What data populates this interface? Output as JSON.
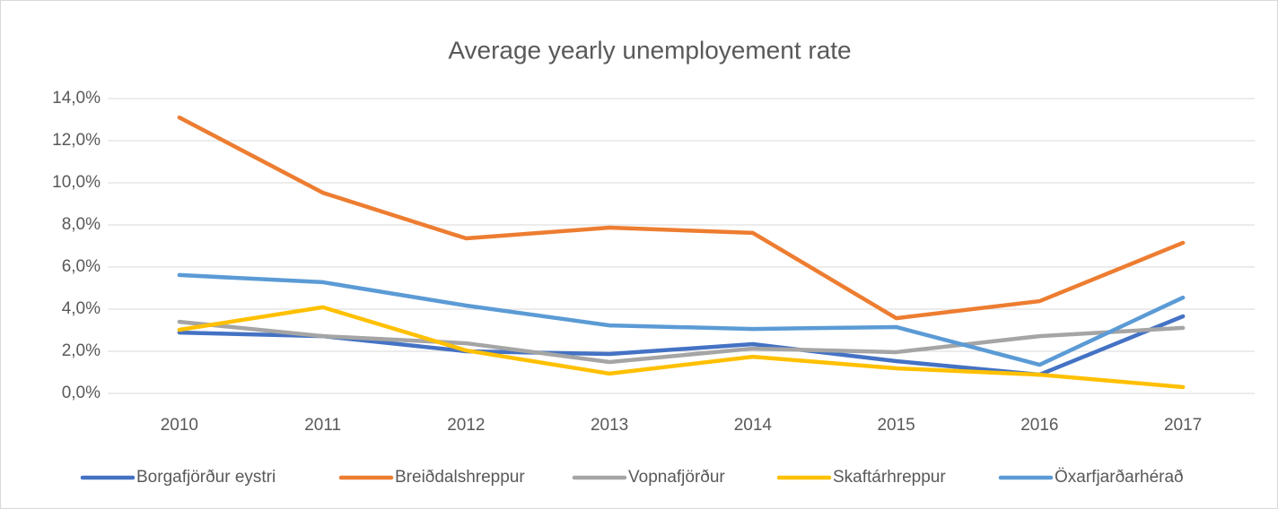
{
  "chart_data": {
    "type": "line",
    "title": "Average yearly unemployement rate",
    "categories": [
      "2010",
      "2011",
      "2012",
      "2013",
      "2014",
      "2015",
      "2016",
      "2017"
    ],
    "series": [
      {
        "name": "Borgafjörður eystri",
        "color": "#4472c4",
        "values": [
          2.89,
          2.72,
          2.0,
          1.87,
          2.34,
          1.53,
          0.89,
          3.66
        ]
      },
      {
        "name": "Breiðdalshreppur",
        "color": "#ed7d31",
        "values": [
          13.1,
          9.53,
          7.36,
          7.87,
          7.62,
          3.57,
          4.38,
          7.15
        ]
      },
      {
        "name": "Vopnafjörður",
        "color": "#a5a5a5",
        "values": [
          3.4,
          2.72,
          2.38,
          1.49,
          2.13,
          1.96,
          2.72,
          3.11
        ]
      },
      {
        "name": "Skaftárhreppur",
        "color": "#ffc000",
        "values": [
          3.02,
          4.09,
          2.04,
          0.94,
          1.74,
          1.19,
          0.89,
          0.3
        ]
      },
      {
        "name": "Öxarfjarðarhérað",
        "color": "#5b9bd5",
        "values": [
          5.62,
          5.28,
          4.17,
          3.23,
          3.06,
          3.15,
          1.36,
          4.55
        ]
      }
    ],
    "ylim": [
      0,
      14
    ],
    "yticks": [
      {
        "value": 0,
        "label": "0,0%"
      },
      {
        "value": 2,
        "label": "2,0%"
      },
      {
        "value": 4,
        "label": "4,0%"
      },
      {
        "value": 6,
        "label": "6,0%"
      },
      {
        "value": 8,
        "label": "8,0%"
      },
      {
        "value": 10,
        "label": "10,0%"
      },
      {
        "value": 12,
        "label": "12,0%"
      },
      {
        "value": 14,
        "label": "14,0%"
      }
    ],
    "grid": true,
    "legend": "bottom"
  }
}
